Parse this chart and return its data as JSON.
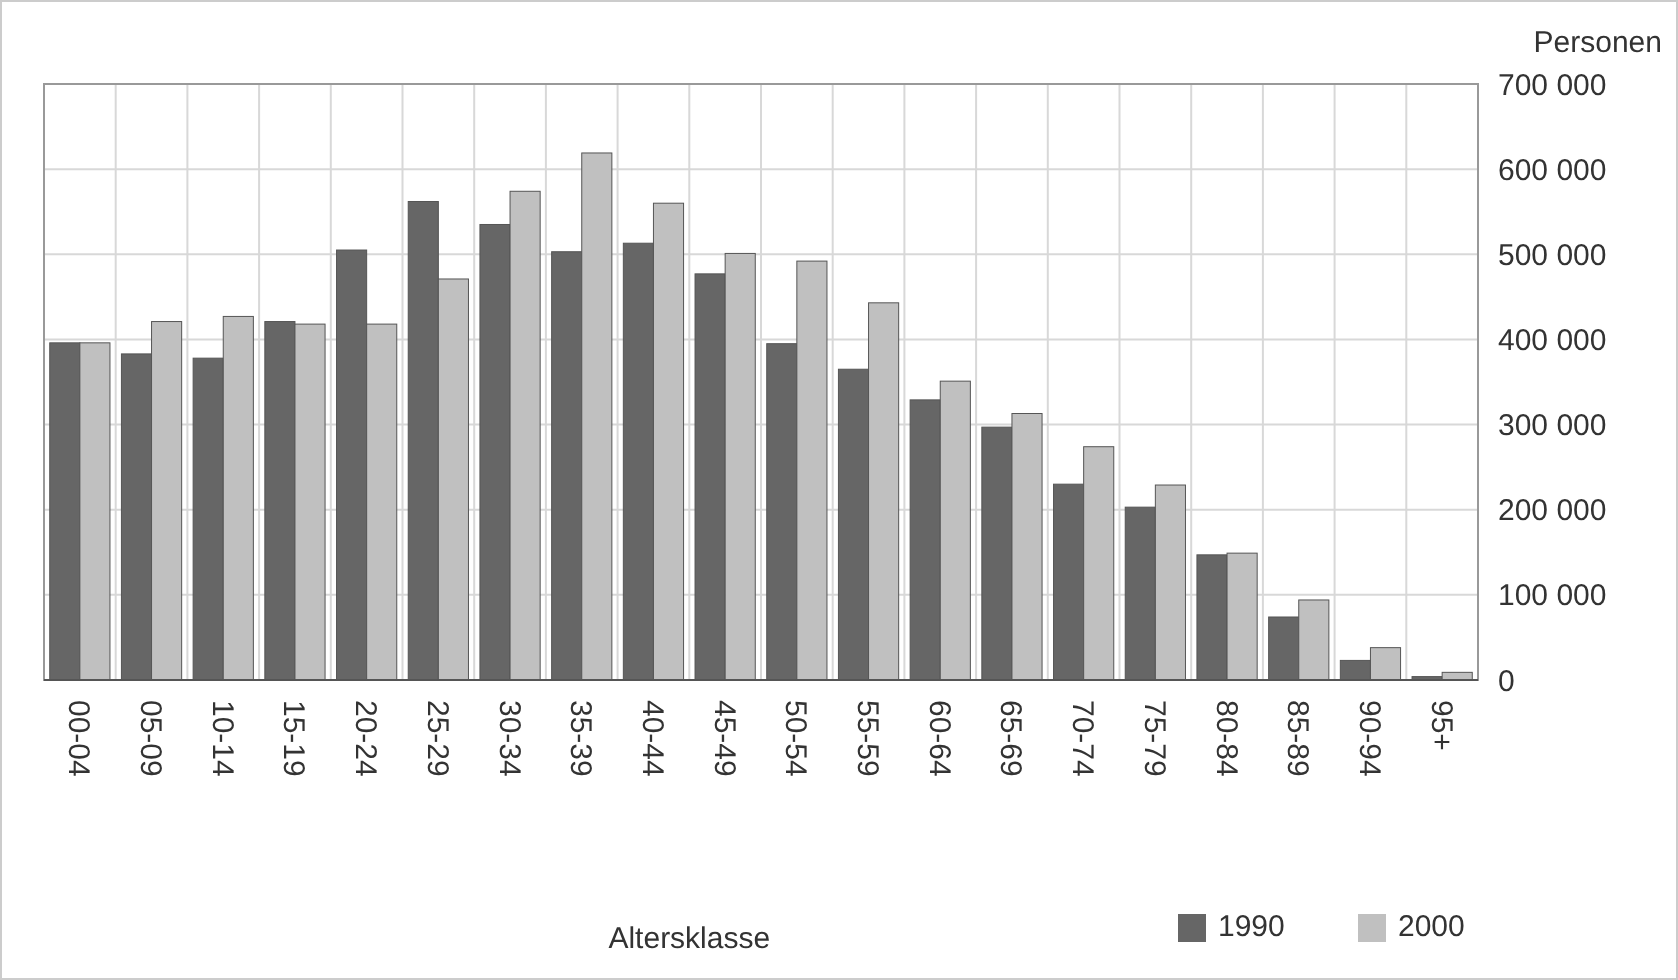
{
  "chart_data": {
    "type": "bar",
    "xlabel": "Altersklasse",
    "ylabel": "Personen",
    "categories": [
      "00-04",
      "05-09",
      "10-14",
      "15-19",
      "20-24",
      "25-29",
      "30-34",
      "35-39",
      "40-44",
      "45-49",
      "50-54",
      "55-59",
      "60-64",
      "65-69",
      "70-74",
      "75-79",
      "80-84",
      "85-89",
      "90-94",
      "95+"
    ],
    "series": [
      {
        "name": "1990",
        "color": "#666666",
        "values": [
          396000,
          383000,
          378000,
          421000,
          505000,
          562000,
          535000,
          503000,
          513000,
          477000,
          395000,
          365000,
          329000,
          297000,
          230000,
          203000,
          147000,
          74000,
          23000,
          4000
        ]
      },
      {
        "name": "2000",
        "color": "#c0c0c0",
        "values": [
          396000,
          421000,
          427000,
          418000,
          418000,
          471000,
          574000,
          619000,
          560000,
          501000,
          492000,
          443000,
          351000,
          313000,
          274000,
          229000,
          149000,
          94000,
          38000,
          9000
        ]
      }
    ],
    "ylim": [
      0,
      700000
    ],
    "yticks": [
      {
        "value": 0,
        "label": "0"
      },
      {
        "value": 100000,
        "label": "100 000"
      },
      {
        "value": 200000,
        "label": "200 000"
      },
      {
        "value": 300000,
        "label": "300 000"
      },
      {
        "value": 400000,
        "label": "400 000"
      },
      {
        "value": 500000,
        "label": "500 000"
      },
      {
        "value": 600000,
        "label": "600 000"
      },
      {
        "value": 700000,
        "label": "700 000"
      }
    ],
    "grid": true,
    "legend": "bottom right"
  }
}
